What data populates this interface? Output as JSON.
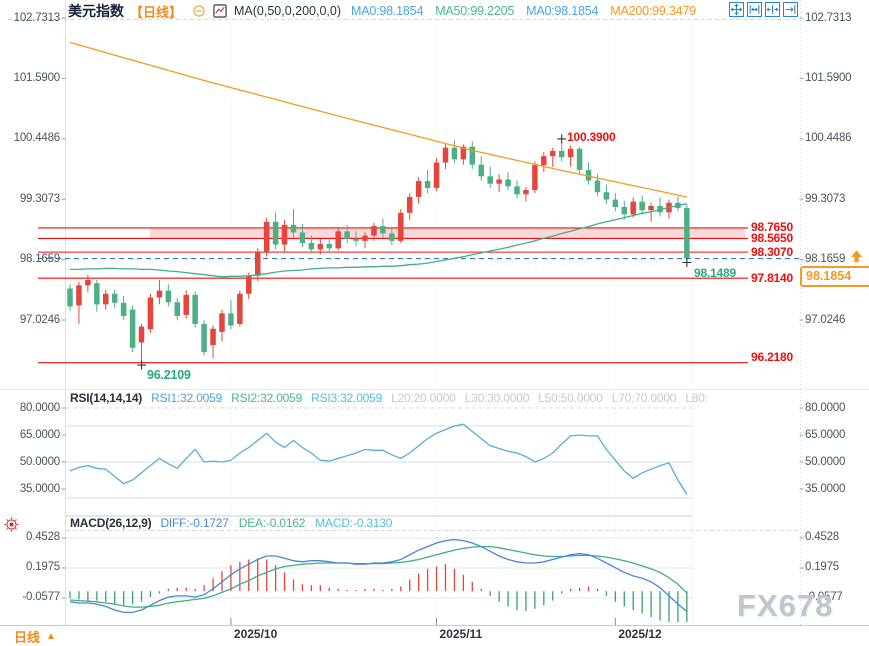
{
  "header": {
    "symbol": "美元指数",
    "timeframe": "【日线】",
    "ma_settings": "MA(0,50,0,200,0,0)",
    "ma_values": [
      {
        "text": "MA0:98.1854",
        "color": "#4aa3e8"
      },
      {
        "text": "MA50:99.2205",
        "color": "#47b98b"
      },
      {
        "text": "MA0:98.1854",
        "color": "#4aa3e8"
      },
      {
        "text": "MA200:99.3479",
        "color": "#f59a23"
      }
    ]
  },
  "toolbar": {
    "icons": [
      "fit-chart",
      "compress-x-axis",
      "expand-x-axis",
      "go-to-latest"
    ]
  },
  "price_axis": {
    "labels": [
      "102.7313",
      "101.5900",
      "100.4486",
      "99.3073",
      "98.1659",
      "97.0246"
    ]
  },
  "level_labels": [
    {
      "text": "98.7650",
      "price": 98.765
    },
    {
      "text": "98.5650",
      "price": 98.565
    },
    {
      "text": "98.3070",
      "price": 98.307
    },
    {
      "text": "97.8140",
      "price": 97.814
    },
    {
      "text": "96.2180",
      "price": 96.218
    }
  ],
  "annotations": {
    "high_label": "100.3900",
    "low_label": "96.2109",
    "last_low_label": "98.1489",
    "current_price_label": "98.1854"
  },
  "rsi_header": {
    "name": "RSI(14,14,14)",
    "values": [
      {
        "text": "RSI1:32.0059",
        "color": "#4aa3e8"
      },
      {
        "text": "RSI2:32.0059",
        "color": "#47b98b"
      },
      {
        "text": "RSI3:32.0059",
        "color": "#4fc0dc"
      },
      {
        "text": "L20:20.0000",
        "color": "#c5cacf"
      },
      {
        "text": "L30:30.0000",
        "color": "#c5cacf"
      },
      {
        "text": "L50:50.0000",
        "color": "#c5cacf"
      },
      {
        "text": "L70:70.0000",
        "color": "#c5cacf"
      },
      {
        "text": "L80:",
        "color": "#c5cacf"
      }
    ],
    "axis_labels": [
      "80.0000",
      "65.0000",
      "50.0000",
      "35.0000"
    ]
  },
  "macd_header": {
    "name": "MACD(26,12,9)",
    "values": [
      {
        "text": "DIFF:-0.1727",
        "color": "#4a86d8"
      },
      {
        "text": "DEA:-0.0162",
        "color": "#47b98b"
      },
      {
        "text": "MACD:-0.3130",
        "color": "#4fc0dc"
      }
    ],
    "axis_labels": [
      "0.4528",
      "0.1975",
      "-0.0577"
    ]
  },
  "x_axis": {
    "dates": [
      "2025/10",
      "2025/11",
      "2025/12"
    ],
    "tick_indices": [
      18,
      41,
      61
    ]
  },
  "footer": {
    "timeframe": "日线",
    "arrow": "▲"
  },
  "watermark": "FX678",
  "colors": {
    "candle_up": "#e2463d",
    "candle_down": "#4cb086",
    "ma50": "#3fae8c",
    "ma200": "#f59a23",
    "level_line": "#f20d0d",
    "band_fill": "#f9d9d9",
    "current_price_line": "#2b7bd6",
    "rsi_line": "#58aed6",
    "macd_diff": "#4a86d8",
    "macd_dea": "#3fae8c",
    "hist_pos": "#e2463d",
    "hist_neg": "#3aa06a",
    "accent_orange": "#f59a23"
  },
  "chart_data": [
    {
      "type": "candlestick",
      "title": "美元指数 日线",
      "x_labels": [
        "2025/10",
        "2025/11",
        "2025/12"
      ],
      "y_ticks": [
        102.7313,
        101.59,
        100.4486,
        99.3073,
        98.1659,
        97.0246
      ],
      "hlines": [
        98.765,
        98.565,
        98.307,
        97.814,
        96.218
      ],
      "band": [
        98.565,
        98.765
      ],
      "current_price": 98.1854,
      "high_annotation": {
        "index": 55,
        "price": 100.39,
        "text": "100.3900"
      },
      "low_annotation": {
        "index": 8,
        "price": 96.2109,
        "text": "96.2109"
      },
      "last_annotation": {
        "index": 69,
        "price": 98.1489,
        "text": "98.1489"
      },
      "candles": [
        [
          97.62,
          97.7,
          97.2,
          97.28
        ],
        [
          97.3,
          97.75,
          96.95,
          97.68
        ],
        [
          97.68,
          97.88,
          97.55,
          97.78
        ],
        [
          97.72,
          97.78,
          97.18,
          97.32
        ],
        [
          97.32,
          97.6,
          97.22,
          97.52
        ],
        [
          97.52,
          97.6,
          97.25,
          97.35
        ],
        [
          97.35,
          97.48,
          97.02,
          97.1
        ],
        [
          97.22,
          97.3,
          96.42,
          96.5
        ],
        [
          96.6,
          96.95,
          96.21,
          96.9
        ],
        [
          96.85,
          97.52,
          96.78,
          97.45
        ],
        [
          97.45,
          97.78,
          97.32,
          97.58
        ],
        [
          97.58,
          97.7,
          97.28,
          97.36
        ],
        [
          97.36,
          97.44,
          97.02,
          97.1
        ],
        [
          97.12,
          97.58,
          97.05,
          97.5
        ],
        [
          97.5,
          97.56,
          96.88,
          96.95
        ],
        [
          96.95,
          97.02,
          96.35,
          96.42
        ],
        [
          96.55,
          96.92,
          96.3,
          96.86
        ],
        [
          96.8,
          97.22,
          96.62,
          97.15
        ],
        [
          97.15,
          97.4,
          96.85,
          96.92
        ],
        [
          96.95,
          97.58,
          96.9,
          97.52
        ],
        [
          97.52,
          97.92,
          97.42,
          97.86
        ],
        [
          97.86,
          98.38,
          97.76,
          98.32
        ],
        [
          98.32,
          98.96,
          98.22,
          98.88
        ],
        [
          98.88,
          99.06,
          98.36,
          98.45
        ],
        [
          98.45,
          98.92,
          98.32,
          98.82
        ],
        [
          98.82,
          99.12,
          98.58,
          98.68
        ],
        [
          98.68,
          98.84,
          98.4,
          98.48
        ],
        [
          98.48,
          98.62,
          98.28,
          98.36
        ],
        [
          98.36,
          98.56,
          98.26,
          98.46
        ],
        [
          98.46,
          98.58,
          98.3,
          98.38
        ],
        [
          98.38,
          98.76,
          98.34,
          98.7
        ],
        [
          98.7,
          98.82,
          98.48,
          98.56
        ],
        [
          98.56,
          98.7,
          98.42,
          98.52
        ],
        [
          98.52,
          98.68,
          98.38,
          98.62
        ],
        [
          98.62,
          98.86,
          98.52,
          98.8
        ],
        [
          98.8,
          98.94,
          98.58,
          98.66
        ],
        [
          98.66,
          98.78,
          98.44,
          98.52
        ],
        [
          98.52,
          99.12,
          98.48,
          99.05
        ],
        [
          99.05,
          99.42,
          98.92,
          99.35
        ],
        [
          99.35,
          99.72,
          99.22,
          99.65
        ],
        [
          99.65,
          99.86,
          99.42,
          99.52
        ],
        [
          99.52,
          100.08,
          99.46,
          100.0
        ],
        [
          100.0,
          100.36,
          99.88,
          100.28
        ],
        [
          100.28,
          100.42,
          99.98,
          100.06
        ],
        [
          100.06,
          100.34,
          99.96,
          100.3
        ],
        [
          100.3,
          100.4,
          99.88,
          99.96
        ],
        [
          99.96,
          100.12,
          99.66,
          99.74
        ],
        [
          99.74,
          99.92,
          99.52,
          99.6
        ],
        [
          99.6,
          99.78,
          99.44,
          99.68
        ],
        [
          99.68,
          99.82,
          99.48,
          99.55
        ],
        [
          99.55,
          99.66,
          99.32,
          99.4
        ],
        [
          99.4,
          99.54,
          99.26,
          99.48
        ],
        [
          99.48,
          100.02,
          99.42,
          99.95
        ],
        [
          99.95,
          100.2,
          99.82,
          100.12
        ],
        [
          100.12,
          100.28,
          99.92,
          100.22
        ],
        [
          100.22,
          100.39,
          100.02,
          100.1
        ],
        [
          100.1,
          100.32,
          99.92,
          100.26
        ],
        [
          100.26,
          100.3,
          99.78,
          99.86
        ],
        [
          99.86,
          100.0,
          99.58,
          99.66
        ],
        [
          99.66,
          99.78,
          99.36,
          99.44
        ],
        [
          99.44,
          99.58,
          99.22,
          99.3
        ],
        [
          99.3,
          99.42,
          99.08,
          99.16
        ],
        [
          99.16,
          99.28,
          98.92,
          99.02
        ],
        [
          99.02,
          99.34,
          98.96,
          99.26
        ],
        [
          99.26,
          99.38,
          99.02,
          99.1
        ],
        [
          99.1,
          99.24,
          98.88,
          99.18
        ],
        [
          99.18,
          99.34,
          98.98,
          99.06
        ],
        [
          99.06,
          99.3,
          98.94,
          99.24
        ],
        [
          99.24,
          99.36,
          99.08,
          99.14
        ],
        [
          99.14,
          99.2,
          98.1489,
          98.19
        ]
      ],
      "ma50": [
        97.98,
        97.98,
        97.99,
        97.99,
        98.0,
        98.0,
        97.99,
        97.99,
        97.98,
        97.98,
        97.97,
        97.95,
        97.94,
        97.92,
        97.9,
        97.88,
        97.86,
        97.84,
        97.85,
        97.85,
        97.86,
        97.88,
        97.9,
        97.93,
        97.95,
        97.96,
        97.97,
        97.99,
        98.0,
        98.01,
        98.01,
        98.02,
        98.02,
        98.03,
        98.03,
        98.04,
        98.04,
        98.05,
        98.07,
        98.08,
        98.1,
        98.13,
        98.16,
        98.19,
        98.22,
        98.26,
        98.29,
        98.33,
        98.36,
        98.4,
        98.44,
        98.48,
        98.52,
        98.57,
        98.61,
        98.66,
        98.7,
        98.75,
        98.79,
        98.84,
        98.88,
        98.92,
        98.96,
        99.0,
        99.04,
        99.07,
        99.11,
        99.15,
        99.19,
        99.22
      ],
      "ma200_points": [
        [
          0,
          102.27
        ],
        [
          15,
          101.55
        ],
        [
          30,
          100.88
        ],
        [
          45,
          100.23
        ],
        [
          55,
          99.85
        ],
        [
          62,
          99.6
        ],
        [
          69,
          99.3479
        ]
      ]
    },
    {
      "type": "line",
      "name": "RSI(14,14,14)",
      "y_ticks": [
        80,
        65,
        50,
        35
      ],
      "hlines": [
        80,
        70,
        50,
        30,
        20
      ],
      "values": [
        45,
        47,
        48,
        46.5,
        46,
        42,
        38,
        40,
        44,
        48,
        52,
        49,
        46.5,
        52,
        57,
        50,
        50.5,
        50,
        51,
        55,
        58,
        62,
        66,
        61,
        58,
        62,
        58,
        55,
        51,
        50.5,
        52,
        53.5,
        55,
        57,
        56.5,
        56.5,
        54,
        52,
        55,
        59,
        63,
        66,
        68,
        70,
        71,
        67,
        63,
        59,
        57.5,
        56,
        55,
        53,
        50,
        52,
        55,
        60,
        64.5,
        65,
        64.5,
        64.5,
        57,
        51,
        45,
        41,
        44,
        46,
        48,
        49.5,
        40,
        32
      ]
    },
    {
      "type": "macd",
      "name": "MACD(26,12,9)",
      "y_ticks": [
        0.4528,
        0.1975,
        -0.0577
      ],
      "diff": [
        -0.09,
        -0.1,
        -0.1,
        -0.11,
        -0.13,
        -0.16,
        -0.18,
        -0.18,
        -0.16,
        -0.12,
        -0.08,
        -0.05,
        -0.04,
        -0.04,
        -0.05,
        -0.03,
        0.02,
        0.08,
        0.14,
        0.19,
        0.23,
        0.27,
        0.3,
        0.3,
        0.28,
        0.26,
        0.25,
        0.26,
        0.26,
        0.25,
        0.24,
        0.24,
        0.23,
        0.23,
        0.24,
        0.24,
        0.25,
        0.27,
        0.31,
        0.35,
        0.38,
        0.41,
        0.43,
        0.44,
        0.43,
        0.41,
        0.38,
        0.34,
        0.3,
        0.27,
        0.25,
        0.24,
        0.24,
        0.25,
        0.27,
        0.29,
        0.31,
        0.32,
        0.31,
        0.28,
        0.24,
        0.2,
        0.16,
        0.13,
        0.11,
        0.08,
        0.03,
        -0.04,
        -0.11,
        -0.1727
      ],
      "dea": [
        -0.075,
        -0.08,
        -0.085,
        -0.09,
        -0.1,
        -0.11,
        -0.125,
        -0.135,
        -0.135,
        -0.13,
        -0.12,
        -0.1,
        -0.09,
        -0.08,
        -0.07,
        -0.06,
        -0.04,
        -0.01,
        0.02,
        0.06,
        0.09,
        0.13,
        0.16,
        0.19,
        0.21,
        0.22,
        0.23,
        0.235,
        0.24,
        0.24,
        0.24,
        0.24,
        0.235,
        0.235,
        0.235,
        0.235,
        0.24,
        0.245,
        0.255,
        0.27,
        0.29,
        0.31,
        0.33,
        0.35,
        0.365,
        0.375,
        0.38,
        0.38,
        0.37,
        0.355,
        0.34,
        0.325,
        0.31,
        0.3,
        0.295,
        0.295,
        0.3,
        0.305,
        0.305,
        0.3,
        0.29,
        0.275,
        0.26,
        0.24,
        0.215,
        0.19,
        0.16,
        0.115,
        0.06,
        -0.0162
      ],
      "hist": [
        -0.06,
        -0.07,
        -0.08,
        -0.08,
        -0.09,
        -0.11,
        -0.12,
        -0.11,
        -0.09,
        -0.05,
        -0.02,
        0.02,
        0.03,
        0.03,
        0.02,
        0.05,
        0.11,
        0.17,
        0.22,
        0.25,
        0.27,
        0.28,
        0.27,
        0.22,
        0.16,
        0.1,
        0.06,
        0.05,
        0.05,
        0.03,
        0.02,
        0.01,
        0.01,
        0.02,
        0.02,
        0.01,
        0.02,
        0.04,
        0.1,
        0.15,
        0.19,
        0.21,
        0.23,
        0.19,
        0.14,
        0.08,
        0.02,
        -0.04,
        -0.09,
        -0.13,
        -0.16,
        -0.17,
        -0.15,
        -0.12,
        -0.08,
        -0.02,
        0.02,
        0.03,
        0.04,
        0.02,
        -0.04,
        -0.09,
        -0.13,
        -0.16,
        -0.19,
        -0.22,
        -0.25,
        -0.27,
        -0.29,
        -0.313
      ]
    }
  ]
}
